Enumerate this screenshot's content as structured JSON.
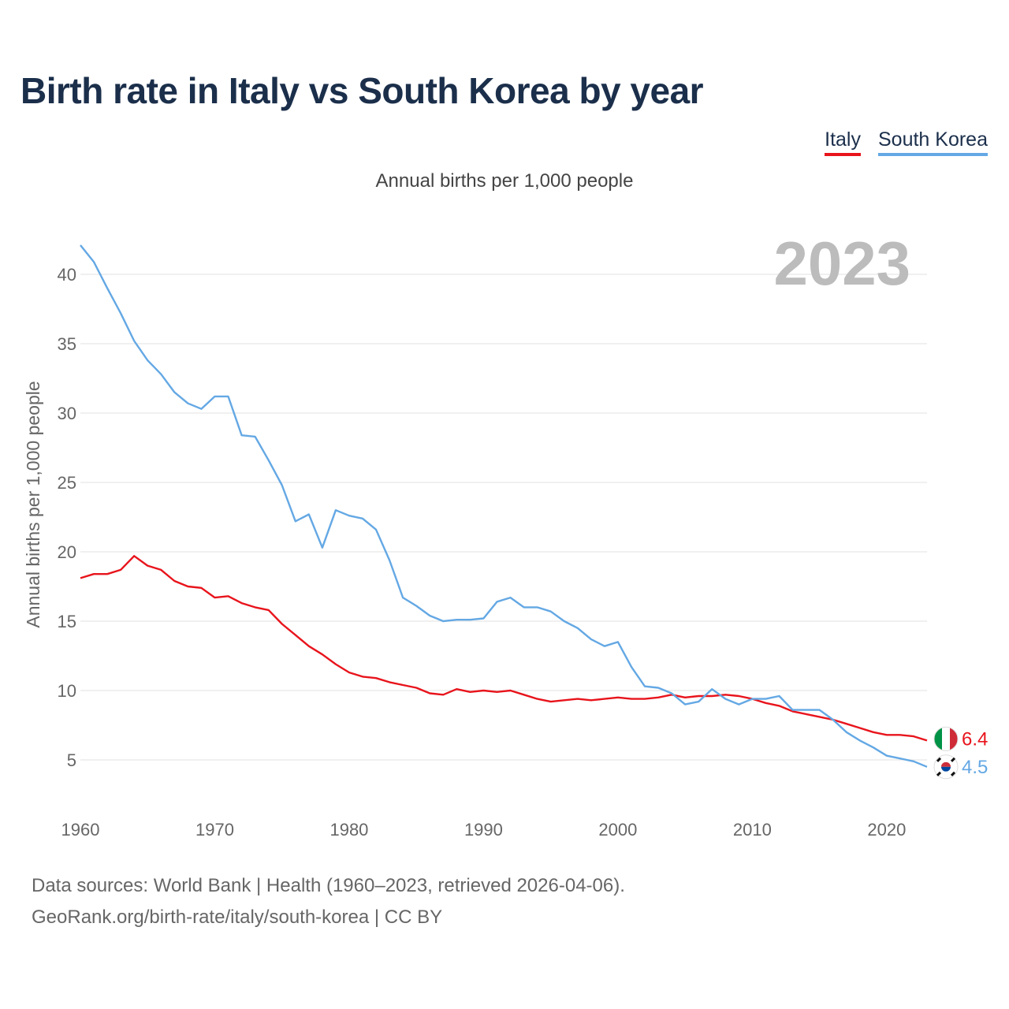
{
  "title": "Birth rate in Italy vs South Korea by year",
  "subtitle": "Annual births per 1,000 people",
  "legend": {
    "italy": "Italy",
    "south_korea": "South Korea"
  },
  "footer": {
    "line1": "Data sources: World Bank | Health (1960–2023, retrieved 2026-04-06).",
    "line2": "GeoRank.org/birth-rate/italy/south-korea | CC BY"
  },
  "colors": {
    "italy": "#e8141c",
    "south_korea": "#64a8e4",
    "title": "#1b2f4b",
    "grid": "#e6e6e6"
  },
  "icons": {
    "italy": "italy-flag-icon",
    "south_korea": "south-korea-flag-icon"
  },
  "chart_data": {
    "type": "line",
    "title": "Birth rate in Italy vs South Korea by year",
    "xlabel": "",
    "ylabel": "Annual births per 1,000 people",
    "xlim": [
      1960,
      2023
    ],
    "ylim": [
      2.5,
      42.5
    ],
    "x_ticks": [
      1960,
      1970,
      1980,
      1990,
      2000,
      2010,
      2020
    ],
    "x_tick_labels": [
      "1960",
      "1970",
      "1980",
      "1990",
      "2000",
      "2010",
      "2020"
    ],
    "y_ticks": [
      5,
      10,
      15,
      20,
      25,
      30,
      35,
      40
    ],
    "y_tick_labels": [
      "5",
      "10",
      "15",
      "20",
      "25",
      "30",
      "35",
      "40"
    ],
    "grid": true,
    "legend_position": "top-right",
    "year_watermark": "2023",
    "x": [
      1960,
      1961,
      1962,
      1963,
      1964,
      1965,
      1966,
      1967,
      1968,
      1969,
      1970,
      1971,
      1972,
      1973,
      1974,
      1975,
      1976,
      1977,
      1978,
      1979,
      1980,
      1981,
      1982,
      1983,
      1984,
      1985,
      1986,
      1987,
      1988,
      1989,
      1990,
      1991,
      1992,
      1993,
      1994,
      1995,
      1996,
      1997,
      1998,
      1999,
      2000,
      2001,
      2002,
      2003,
      2004,
      2005,
      2006,
      2007,
      2008,
      2009,
      2010,
      2011,
      2012,
      2013,
      2014,
      2015,
      2016,
      2017,
      2018,
      2019,
      2020,
      2021,
      2022,
      2023
    ],
    "series": [
      {
        "name": "Italy",
        "key": "italy",
        "end_label": "6.4",
        "values": [
          18.1,
          18.4,
          18.4,
          18.7,
          19.7,
          19.0,
          18.7,
          17.9,
          17.5,
          17.4,
          16.7,
          16.8,
          16.3,
          16.0,
          15.8,
          14.8,
          14.0,
          13.2,
          12.6,
          11.9,
          11.3,
          11.0,
          10.9,
          10.6,
          10.4,
          10.2,
          9.8,
          9.7,
          10.1,
          9.9,
          10.0,
          9.9,
          10.0,
          9.7,
          9.4,
          9.2,
          9.3,
          9.4,
          9.3,
          9.4,
          9.5,
          9.4,
          9.4,
          9.5,
          9.7,
          9.5,
          9.6,
          9.6,
          9.7,
          9.6,
          9.4,
          9.1,
          8.9,
          8.5,
          8.3,
          8.1,
          7.9,
          7.6,
          7.3,
          7.0,
          6.8,
          6.8,
          6.7,
          6.4
        ]
      },
      {
        "name": "South Korea",
        "key": "south_korea",
        "end_label": "4.5",
        "values": [
          42.1,
          40.9,
          39.0,
          37.2,
          35.2,
          33.8,
          32.8,
          31.5,
          30.7,
          30.3,
          31.2,
          31.2,
          28.4,
          28.3,
          26.6,
          24.8,
          22.2,
          22.7,
          20.3,
          23.0,
          22.6,
          22.4,
          21.6,
          19.4,
          16.7,
          16.1,
          15.4,
          15.0,
          15.1,
          15.1,
          15.2,
          16.4,
          16.7,
          16.0,
          16.0,
          15.7,
          15.0,
          14.5,
          13.7,
          13.2,
          13.5,
          11.7,
          10.3,
          10.2,
          9.8,
          9.0,
          9.2,
          10.1,
          9.4,
          9.0,
          9.4,
          9.4,
          9.6,
          8.6,
          8.6,
          8.6,
          7.9,
          7.0,
          6.4,
          5.9,
          5.3,
          5.1,
          4.9,
          4.5
        ]
      }
    ]
  }
}
